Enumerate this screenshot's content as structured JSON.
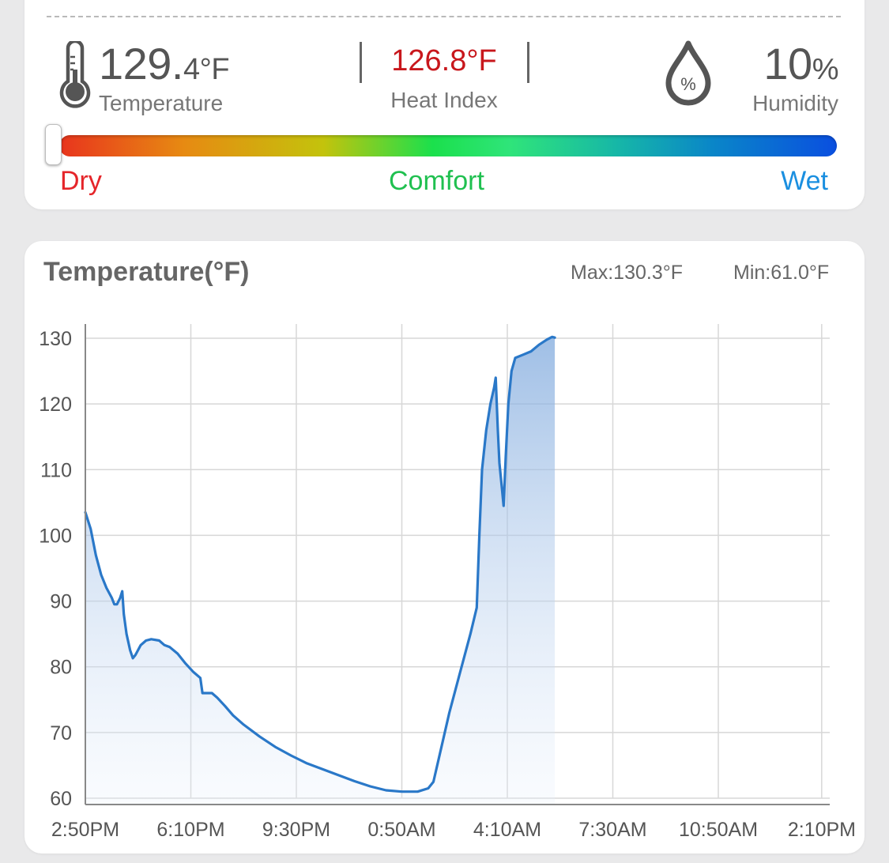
{
  "summary": {
    "temperature_whole": "129.",
    "temperature_decimal": "4",
    "temperature_unit": "°F",
    "temperature_label": "Temperature",
    "heat_index_value": "126.8°F",
    "heat_index_label": "Heat Index",
    "humidity_value": "10",
    "humidity_unit": "%",
    "humidity_label": "Humidity",
    "humidity_icon_text": "%",
    "temperature_icon": "thermometer-icon",
    "humidity_icon": "humidity-drop-icon"
  },
  "comfort_scale": {
    "dry_label": "Dry",
    "comfort_label": "Comfort",
    "wet_label": "Wet",
    "dry_color": "#e5252a",
    "comfort_color": "#20c050",
    "wet_color": "#1a8fe0",
    "indicator_level": 0
  },
  "chart_header": {
    "title": "Temperature(°F)",
    "max_label": "Max:130.3°F",
    "min_label": "Min:61.0°F"
  },
  "chart_data": {
    "type": "area",
    "title": "Temperature(°F)",
    "xlabel": "",
    "ylabel": "",
    "ylim": [
      60,
      130
    ],
    "y_ticks": [
      60,
      70,
      80,
      90,
      100,
      110,
      120,
      130
    ],
    "x_ticks": [
      "2:50PM",
      "6:10PM",
      "9:30PM",
      "0:50AM",
      "4:10AM",
      "7:30AM",
      "10:50AM",
      "2:10PM"
    ],
    "x_tick_interval_minutes": 200,
    "grid": true,
    "line_color": "#2a78c8",
    "series": [
      {
        "name": "",
        "points": [
          [
            0,
            103.5
          ],
          [
            10,
            101
          ],
          [
            20,
            97
          ],
          [
            30,
            94
          ],
          [
            40,
            92
          ],
          [
            50,
            90.5
          ],
          [
            55,
            89.5
          ],
          [
            60,
            89.5
          ],
          [
            66,
            90.5
          ],
          [
            70,
            91.5
          ],
          [
            73,
            88
          ],
          [
            78,
            85
          ],
          [
            85,
            82.5
          ],
          [
            90,
            81.3
          ],
          [
            95,
            81.8
          ],
          [
            105,
            83.3
          ],
          [
            115,
            84
          ],
          [
            125,
            84.2
          ],
          [
            140,
            84
          ],
          [
            150,
            83.3
          ],
          [
            160,
            83
          ],
          [
            175,
            82
          ],
          [
            190,
            80.5
          ],
          [
            205,
            79.2
          ],
          [
            218,
            78.3
          ],
          [
            222,
            76
          ],
          [
            226,
            76
          ],
          [
            240,
            76
          ],
          [
            250,
            75.3
          ],
          [
            265,
            74
          ],
          [
            280,
            72.6
          ],
          [
            300,
            71.2
          ],
          [
            330,
            69.4
          ],
          [
            360,
            67.8
          ],
          [
            390,
            66.5
          ],
          [
            420,
            65.3
          ],
          [
            450,
            64.4
          ],
          [
            480,
            63.5
          ],
          [
            510,
            62.6
          ],
          [
            540,
            61.8
          ],
          [
            570,
            61.2
          ],
          [
            600,
            61.0
          ],
          [
            630,
            61.0
          ],
          [
            650,
            61.5
          ],
          [
            660,
            62.5
          ],
          [
            670,
            66
          ],
          [
            690,
            73
          ],
          [
            710,
            79
          ],
          [
            730,
            85
          ],
          [
            742,
            89
          ],
          [
            747,
            100
          ],
          [
            752,
            110
          ],
          [
            760,
            116
          ],
          [
            768,
            120
          ],
          [
            775,
            122.5
          ],
          [
            778,
            124
          ],
          [
            782,
            116
          ],
          [
            785,
            111
          ],
          [
            790,
            107
          ],
          [
            793,
            104.5
          ],
          [
            797,
            112
          ],
          [
            802,
            120
          ],
          [
            808,
            125
          ],
          [
            815,
            127
          ],
          [
            830,
            127.5
          ],
          [
            845,
            128
          ],
          [
            860,
            129
          ],
          [
            875,
            129.8
          ],
          [
            885,
            130.2
          ],
          [
            890,
            130.1
          ]
        ]
      }
    ]
  }
}
